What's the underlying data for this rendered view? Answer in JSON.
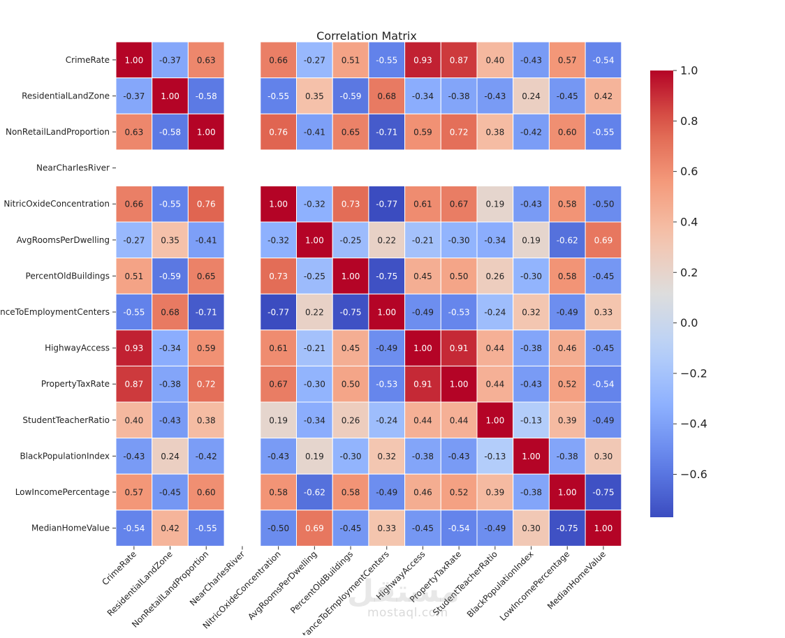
{
  "chart_data": {
    "type": "heatmap",
    "title": "Correlation Matrix",
    "colormap": "coolwarm",
    "vmin": -0.77,
    "vmax": 1.0,
    "annotation_format": "0.00",
    "grid_lines": "white",
    "rows": [
      "CrimeRate",
      "ResidentialLandZone",
      "NonRetailLandProportion",
      "NearCharlesRiver",
      "NitricOxideConcentration",
      "AvgRoomsPerDwelling",
      "PercentOldBuildings",
      "DistanceToEmploymentCenters",
      "HighwayAccess",
      "PropertyTaxRate",
      "StudentTeacherRatio",
      "BlackPopulationIndex",
      "LowIncomePercentage",
      "MedianHomeValue"
    ],
    "columns": [
      "CrimeRate",
      "ResidentialLandZone",
      "NonRetailLandProportion",
      "NearCharlesRiver",
      "NitricOxideConcentration",
      "AvgRoomsPerDwelling",
      "PercentOldBuildings",
      "DistanceToEmploymentCenters",
      "HighwayAccess",
      "PropertyTaxRate",
      "StudentTeacherRatio",
      "BlackPopulationIndex",
      "LowIncomePercentage",
      "MedianHomeValue"
    ],
    "values": [
      [
        1.0,
        -0.37,
        0.63,
        null,
        0.66,
        -0.27,
        0.51,
        -0.55,
        0.93,
        0.87,
        0.4,
        -0.43,
        0.57,
        -0.54
      ],
      [
        -0.37,
        1.0,
        -0.58,
        null,
        -0.55,
        0.35,
        -0.59,
        0.68,
        -0.34,
        -0.38,
        -0.43,
        0.24,
        -0.45,
        0.42
      ],
      [
        0.63,
        -0.58,
        1.0,
        null,
        0.76,
        -0.41,
        0.65,
        -0.71,
        0.59,
        0.72,
        0.38,
        -0.42,
        0.6,
        -0.55
      ],
      [
        null,
        null,
        null,
        null,
        null,
        null,
        null,
        null,
        null,
        null,
        null,
        null,
        null,
        null
      ],
      [
        0.66,
        -0.55,
        0.76,
        null,
        1.0,
        -0.32,
        0.73,
        -0.77,
        0.61,
        0.67,
        0.19,
        -0.43,
        0.58,
        -0.5
      ],
      [
        -0.27,
        0.35,
        -0.41,
        null,
        -0.32,
        1.0,
        -0.25,
        0.22,
        -0.21,
        -0.3,
        -0.34,
        0.19,
        -0.62,
        0.69
      ],
      [
        0.51,
        -0.59,
        0.65,
        null,
        0.73,
        -0.25,
        1.0,
        -0.75,
        0.45,
        0.5,
        0.26,
        -0.3,
        0.58,
        -0.45
      ],
      [
        -0.55,
        0.68,
        -0.71,
        null,
        -0.77,
        0.22,
        -0.75,
        1.0,
        -0.49,
        -0.53,
        -0.24,
        0.32,
        -0.49,
        0.33
      ],
      [
        0.93,
        -0.34,
        0.59,
        null,
        0.61,
        -0.21,
        0.45,
        -0.49,
        1.0,
        0.91,
        0.44,
        -0.38,
        0.46,
        -0.45
      ],
      [
        0.87,
        -0.38,
        0.72,
        null,
        0.67,
        -0.3,
        0.5,
        -0.53,
        0.91,
        1.0,
        0.44,
        -0.43,
        0.52,
        -0.54
      ],
      [
        0.4,
        -0.43,
        0.38,
        null,
        0.19,
        -0.34,
        0.26,
        -0.24,
        0.44,
        0.44,
        1.0,
        -0.13,
        0.39,
        -0.49
      ],
      [
        -0.43,
        0.24,
        -0.42,
        null,
        -0.43,
        0.19,
        -0.3,
        0.32,
        -0.38,
        -0.43,
        -0.13,
        1.0,
        -0.38,
        0.3
      ],
      [
        0.57,
        -0.45,
        0.6,
        null,
        0.58,
        -0.62,
        0.58,
        -0.49,
        0.46,
        0.52,
        0.39,
        -0.38,
        1.0,
        -0.75
      ],
      [
        -0.54,
        0.42,
        -0.55,
        null,
        -0.5,
        0.69,
        -0.45,
        0.33,
        -0.45,
        -0.54,
        -0.49,
        0.3,
        -0.75,
        1.0
      ]
    ],
    "colorbar": {
      "ticks": [
        1.0,
        0.8,
        0.6,
        0.4,
        0.2,
        0.0,
        -0.2,
        -0.4,
        -0.6
      ],
      "tick_labels": [
        "1.0",
        "0.8",
        "0.6",
        "0.4",
        "0.2",
        "0.0",
        "−0.2",
        "−0.4",
        "−0.6"
      ]
    }
  },
  "watermark": {
    "logo_text": "مستقل",
    "site_text": "mostaql.com"
  }
}
